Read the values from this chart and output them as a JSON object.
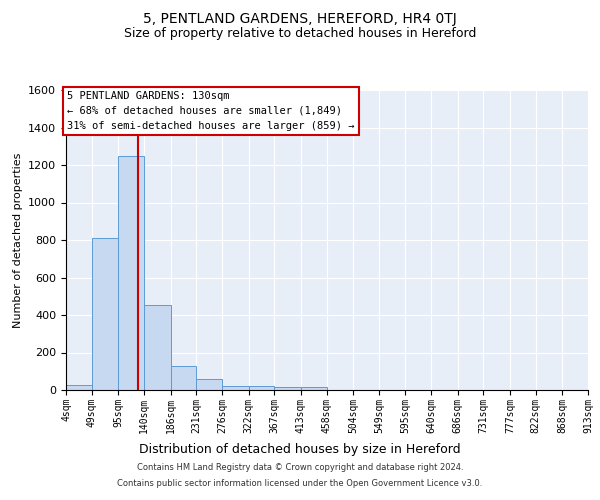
{
  "title": "5, PENTLAND GARDENS, HEREFORD, HR4 0TJ",
  "subtitle": "Size of property relative to detached houses in Hereford",
  "xlabel": "Distribution of detached houses by size in Hereford",
  "ylabel": "Number of detached properties",
  "bin_edges": [
    4,
    49,
    95,
    140,
    186,
    231,
    276,
    322,
    367,
    413,
    458,
    504,
    549,
    595,
    640,
    686,
    731,
    777,
    822,
    868,
    913
  ],
  "bar_heights": [
    25,
    810,
    1250,
    455,
    130,
    60,
    20,
    20,
    15,
    15,
    0,
    0,
    0,
    0,
    0,
    0,
    0,
    0,
    0,
    0
  ],
  "bar_color": "#c6d9f0",
  "bar_edge_color": "#5b9bd5",
  "property_size": 130,
  "vline_color": "#cc0000",
  "ylim": [
    0,
    1600
  ],
  "annotation_text": "5 PENTLAND GARDENS: 130sqm\n← 68% of detached houses are smaller (1,849)\n31% of semi-detached houses are larger (859) →",
  "annotation_box_color": "white",
  "annotation_box_edge_color": "#cc0000",
  "footer_line1": "Contains HM Land Registry data © Crown copyright and database right 2024.",
  "footer_line2": "Contains public sector information licensed under the Open Government Licence v3.0.",
  "background_color": "#e8eef8",
  "title_fontsize": 10,
  "subtitle_fontsize": 9,
  "xlabel_fontsize": 9,
  "ylabel_fontsize": 8,
  "tick_labels": [
    "4sqm",
    "49sqm",
    "95sqm",
    "140sqm",
    "186sqm",
    "231sqm",
    "276sqm",
    "322sqm",
    "367sqm",
    "413sqm",
    "458sqm",
    "504sqm",
    "549sqm",
    "595sqm",
    "640sqm",
    "686sqm",
    "731sqm",
    "777sqm",
    "822sqm",
    "868sqm",
    "913sqm"
  ],
  "yticks": [
    0,
    200,
    400,
    600,
    800,
    1000,
    1200,
    1400,
    1600
  ]
}
